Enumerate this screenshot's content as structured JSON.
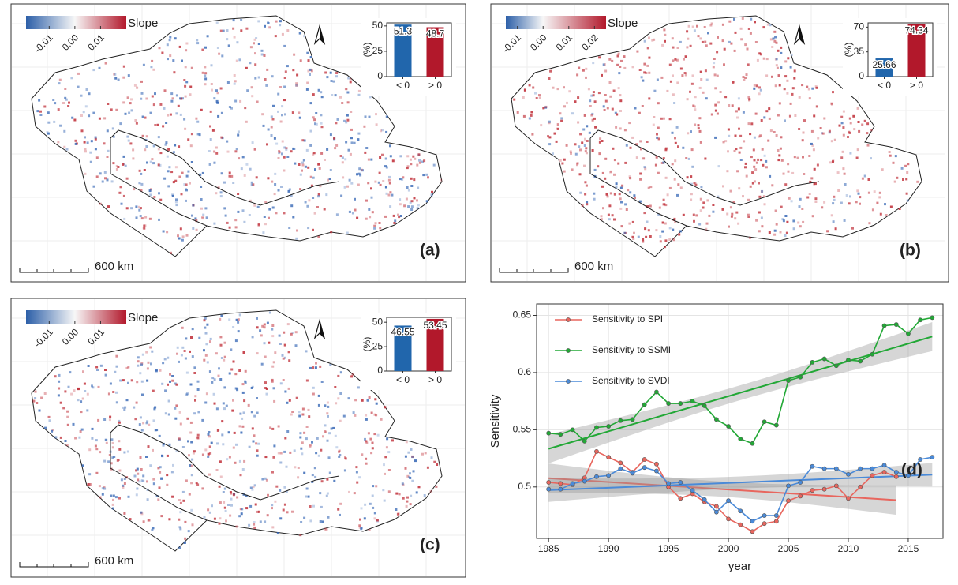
{
  "maps": [
    {
      "label": "(a)",
      "scale_bar": "600 km",
      "colorbar": {
        "title": "Slope",
        "lim": [
          -0.019,
          0.02
        ],
        "ticks": [
          -0.01,
          {
            "value": 0,
            "label": "0.00"
          },
          0.01
        ]
      }
    },
    {
      "label": "(b)",
      "scale_bar": "600 km",
      "colorbar": {
        "title": "Slope",
        "lim": [
          -0.0145,
          0.0245
        ],
        "ticks": [
          -0.01,
          {
            "value": 0,
            "label": "0.00"
          },
          0.01,
          0.02
        ]
      }
    },
    {
      "label": "(c)",
      "scale_bar": "600 km",
      "colorbar": {
        "title": "Slope",
        "lim": [
          -0.019,
          0.02
        ],
        "ticks": [
          -0.01,
          {
            "value": 0,
            "label": "0.00"
          },
          0.01
        ]
      }
    }
  ],
  "chart_data": [
    {
      "type": "bar",
      "ylabel": "(%)",
      "categories": [
        "< 0",
        "> 0"
      ],
      "values": [
        51.3,
        48.7
      ],
      "colors": [
        "#2166ac",
        "#b2182b"
      ],
      "ylim": [
        0,
        53
      ],
      "yticks": [
        0,
        25,
        50
      ]
    },
    {
      "type": "bar",
      "ylabel": "(%)",
      "categories": [
        "< 0",
        "> 0"
      ],
      "values": [
        25.66,
        74.34
      ],
      "colors": [
        "#2166ac",
        "#b2182b"
      ],
      "ylim": [
        0,
        76
      ],
      "yticks": [
        0,
        35,
        70
      ]
    },
    {
      "type": "bar",
      "ylabel": "(%)",
      "categories": [
        "< 0",
        "> 0"
      ],
      "values": [
        46.55,
        53.45
      ],
      "colors": [
        "#2166ac",
        "#b2182b"
      ],
      "ylim": [
        0,
        55
      ],
      "yticks": [
        0,
        25,
        50
      ]
    },
    {
      "type": "line",
      "panel_label": "(d)",
      "xlabel": "year",
      "ylabel": "Sensitivity",
      "x": [
        1985,
        1986,
        1987,
        1988,
        1989,
        1990,
        1991,
        1992,
        1993,
        1994,
        1995,
        1996,
        1997,
        1998,
        1999,
        2000,
        2001,
        2002,
        2003,
        2004,
        2005,
        2006,
        2007,
        2008,
        2009,
        2010,
        2011,
        2012,
        2013,
        2014,
        2015,
        2016,
        2017
      ],
      "series": [
        {
          "name": "Sensitivity to SPI",
          "color": "#e8665e",
          "values": [
            0.504,
            0.503,
            0.502,
            0.508,
            0.531,
            0.526,
            0.521,
            0.513,
            0.524,
            0.52,
            0.5,
            0.49,
            0.494,
            0.487,
            0.483,
            0.472,
            0.467,
            0.461,
            0.468,
            0.47,
            0.488,
            0.492,
            0.497,
            0.498,
            0.501,
            0.49,
            0.5,
            0.51,
            0.513,
            0.509,
            null,
            null,
            null
          ]
        },
        {
          "name": "Sensitivity to SSMI",
          "color": "#22a836",
          "values": [
            0.547,
            0.546,
            0.55,
            0.54,
            0.552,
            0.553,
            0.558,
            0.559,
            0.572,
            0.583,
            0.573,
            0.573,
            0.575,
            0.571,
            0.559,
            0.553,
            0.542,
            0.538,
            0.557,
            0.554,
            0.593,
            0.596,
            0.609,
            0.612,
            0.606,
            0.611,
            0.61,
            0.616,
            0.641,
            0.642,
            0.634,
            0.646,
            0.648
          ]
        },
        {
          "name": "Sensitivity to SVDI",
          "color": "#4a8ad8",
          "values": [
            0.498,
            0.498,
            0.503,
            0.505,
            0.509,
            0.51,
            0.516,
            0.512,
            0.517,
            0.514,
            0.503,
            0.504,
            0.497,
            0.489,
            0.478,
            0.488,
            0.479,
            0.47,
            0.475,
            0.475,
            0.501,
            0.504,
            0.518,
            0.516,
            0.516,
            0.511,
            0.516,
            0.516,
            0.519,
            0.513,
            0.51,
            0.524,
            0.526
          ]
        }
      ],
      "xlim": [
        1984,
        2017.9
      ],
      "ylim": [
        0.455,
        0.66
      ],
      "xticks": [
        1985,
        1990,
        1995,
        2000,
        2005,
        2010,
        2015
      ],
      "yticks": [
        0.5,
        0.55,
        0.6,
        0.65
      ],
      "grid": true,
      "trend": true
    }
  ]
}
